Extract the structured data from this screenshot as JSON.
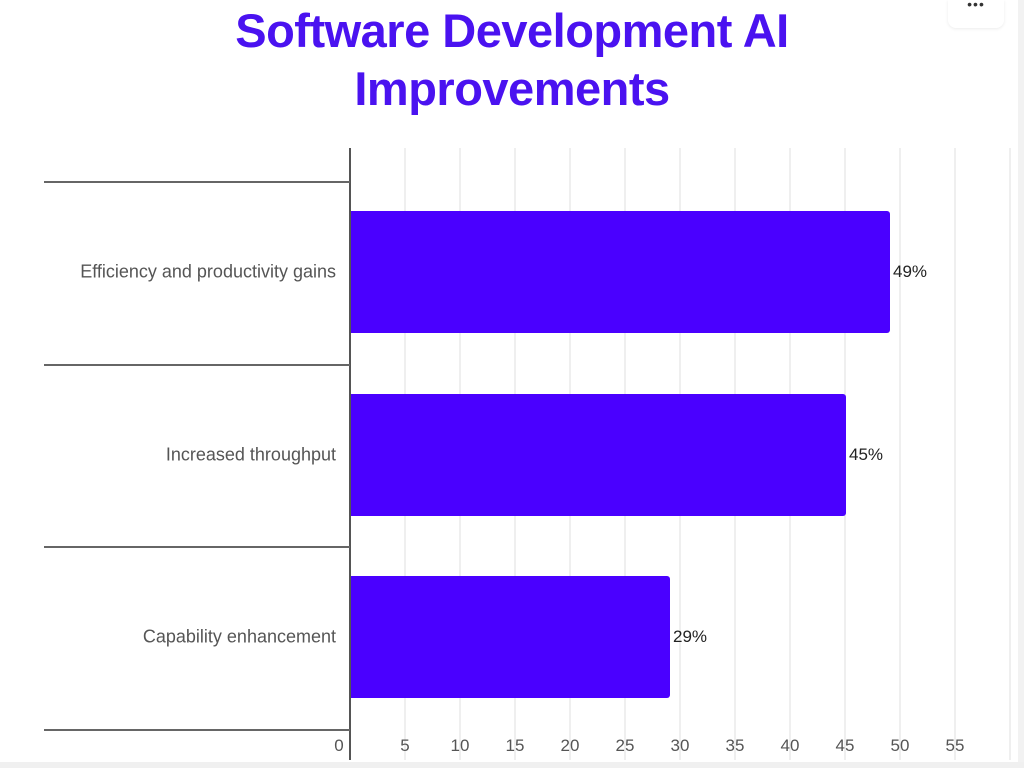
{
  "header": {
    "title_line1": "Software Development AI",
    "title_line2": "Improvements",
    "menu_icon": "more-horizontal-icon",
    "menu_glyph": "•••"
  },
  "colors": {
    "title": "#4a12f0",
    "bar": "#4a00ff",
    "gridline": "#efefef",
    "axis": "#555555"
  },
  "chart_data": {
    "type": "bar",
    "orientation": "horizontal",
    "title": "Software Development AI Improvements",
    "categories": [
      "Efficiency and productivity gains",
      "Increased throughput",
      "Capability enhancement"
    ],
    "values": [
      49,
      45,
      29
    ],
    "value_labels": [
      "49%",
      "45%",
      "29%"
    ],
    "xlabel": "",
    "ylabel": "",
    "xlim": [
      0,
      55
    ],
    "xticks": [
      "0",
      "5",
      "10",
      "15",
      "20",
      "25",
      "30",
      "35",
      "40",
      "45",
      "50",
      "55"
    ],
    "grid": true,
    "legend": "none"
  }
}
